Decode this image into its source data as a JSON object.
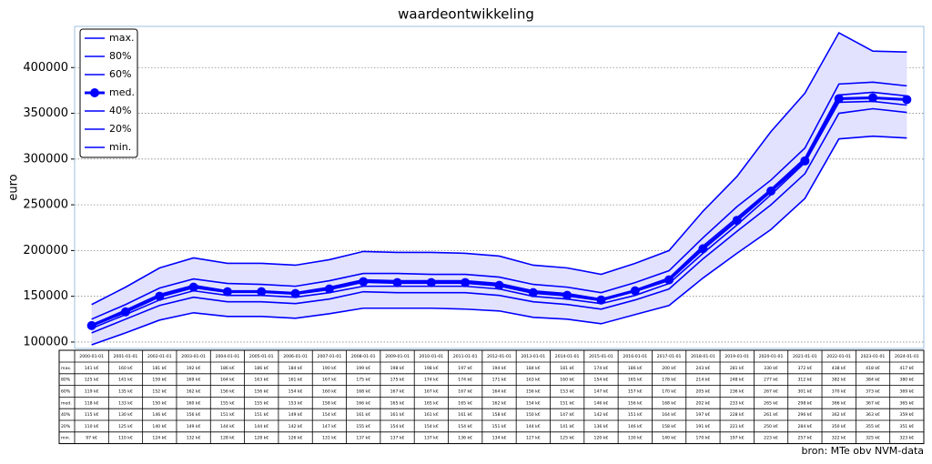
{
  "chart_data": {
    "type": "line",
    "title": "waardeontwikkeling",
    "y_label": "euro",
    "source": "bron: MTe obv NVM-data",
    "x": [
      "2000-01-01",
      "2001-01-01",
      "2002-01-01",
      "2003-01-01",
      "2004-01-01",
      "2005-01-01",
      "2006-01-01",
      "2007-01-01",
      "2008-01-01",
      "2009-01-01",
      "2010-01-01",
      "2011-01-01",
      "2012-01-01",
      "2013-01-01",
      "2014-01-01",
      "2015-01-01",
      "2016-01-01",
      "2017-01-01",
      "2018-01-01",
      "2019-01-01",
      "2020-01-01",
      "2021-01-01",
      "2022-01-01",
      "2023-01-01",
      "2024-01-01"
    ],
    "ylim": [
      93000,
      445000
    ],
    "yticks": [
      100000,
      150000,
      200000,
      250000,
      300000,
      350000,
      400000
    ],
    "grid": true,
    "legend": "upper left",
    "fill_color": "#e2e2ff",
    "series": [
      {
        "name": "max.",
        "color": "#0000ff",
        "values": [
          141000,
          160000,
          181000,
          192000,
          186000,
          186000,
          184000,
          190000,
          199000,
          198000,
          198000,
          197000,
          194000,
          184000,
          181000,
          174000,
          186000,
          200000,
          243000,
          281000,
          330000,
          372000,
          438000,
          418000,
          417000
        ],
        "value_labels": [
          "141 k€",
          "160 k€",
          "181 k€",
          "192 k€",
          "186 k€",
          "186 k€",
          "184 k€",
          "190 k€",
          "199 k€",
          "198 k€",
          "198 k€",
          "197 k€",
          "194 k€",
          "184 k€",
          "181 k€",
          "174 k€",
          "186 k€",
          "200 k€",
          "243 k€",
          "281 k€",
          "330 k€",
          "372 k€",
          "438 k€",
          "418 k€",
          "417 k€"
        ]
      },
      {
        "name": "80%",
        "color": "#0000ff",
        "values": [
          125000,
          141000,
          159000,
          169000,
          164000,
          163000,
          161000,
          167000,
          175000,
          175000,
          174000,
          174000,
          171000,
          163000,
          160000,
          154000,
          165000,
          178000,
          214000,
          248000,
          277000,
          312000,
          382000,
          384000,
          380000
        ],
        "value_labels": [
          "125 k€",
          "141 k€",
          "159 k€",
          "169 k€",
          "164 k€",
          "163 k€",
          "161 k€",
          "167 k€",
          "175 k€",
          "175 k€",
          "174 k€",
          "174 k€",
          "171 k€",
          "163 k€",
          "160 k€",
          "154 k€",
          "165 k€",
          "178 k€",
          "214 k€",
          "248 k€",
          "277 k€",
          "312 k€",
          "382 k€",
          "384 k€",
          "380 k€"
        ]
      },
      {
        "name": "60%",
        "color": "#0000ff",
        "values": [
          119000,
          135000,
          152000,
          162000,
          156000,
          156000,
          154000,
          160000,
          168000,
          167000,
          167000,
          167000,
          164000,
          156000,
          153000,
          147000,
          157000,
          170000,
          205000,
          236000,
          267000,
          301000,
          370000,
          373000,
          369000
        ],
        "value_labels": [
          "119 k€",
          "135 k€",
          "152 k€",
          "162 k€",
          "156 k€",
          "156 k€",
          "154 k€",
          "160 k€",
          "168 k€",
          "167 k€",
          "167 k€",
          "167 k€",
          "164 k€",
          "156 k€",
          "153 k€",
          "147 k€",
          "157 k€",
          "170 k€",
          "205 k€",
          "236 k€",
          "267 k€",
          "301 k€",
          "370 k€",
          "373 k€",
          "369 k€"
        ]
      },
      {
        "name": "med.",
        "color": "#0000ff",
        "marker": "o",
        "values": [
          118000,
          133000,
          150000,
          160000,
          155000,
          155000,
          153000,
          158000,
          166000,
          165000,
          165000,
          165000,
          162000,
          154000,
          151000,
          146000,
          156000,
          168000,
          202000,
          233000,
          265000,
          298000,
          366000,
          367000,
          365000
        ],
        "value_labels": [
          "118 k€",
          "133 k€",
          "150 k€",
          "160 k€",
          "155 k€",
          "155 k€",
          "153 k€",
          "158 k€",
          "166 k€",
          "165 k€",
          "165 k€",
          "165 k€",
          "162 k€",
          "154 k€",
          "151 k€",
          "146 k€",
          "156 k€",
          "168 k€",
          "202 k€",
          "233 k€",
          "265 k€",
          "298 k€",
          "366 k€",
          "367 k€",
          "365 k€"
        ]
      },
      {
        "name": "40%",
        "color": "#0000ff",
        "values": [
          115000,
          130000,
          146000,
          156000,
          151000,
          151000,
          149000,
          154000,
          161000,
          161000,
          161000,
          161000,
          158000,
          150000,
          147000,
          142000,
          151000,
          164000,
          197000,
          228000,
          261000,
          296000,
          362000,
          363000,
          359000
        ],
        "value_labels": [
          "115 k€",
          "130 k€",
          "146 k€",
          "156 k€",
          "151 k€",
          "151 k€",
          "149 k€",
          "154 k€",
          "161 k€",
          "161 k€",
          "161 k€",
          "161 k€",
          "158 k€",
          "150 k€",
          "147 k€",
          "142 k€",
          "151 k€",
          "164 k€",
          "197 k€",
          "228 k€",
          "261 k€",
          "296 k€",
          "362 k€",
          "363 k€",
          "359 k€"
        ]
      },
      {
        "name": "20%",
        "color": "#0000ff",
        "values": [
          110000,
          125000,
          140000,
          149000,
          144000,
          144000,
          142000,
          147000,
          155000,
          154000,
          154000,
          154000,
          151000,
          144000,
          141000,
          136000,
          146000,
          158000,
          191000,
          221000,
          250000,
          284000,
          350000,
          355000,
          351000
        ],
        "value_labels": [
          "110 k€",
          "125 k€",
          "140 k€",
          "149 k€",
          "144 k€",
          "144 k€",
          "142 k€",
          "147 k€",
          "155 k€",
          "154 k€",
          "154 k€",
          "154 k€",
          "151 k€",
          "144 k€",
          "141 k€",
          "136 k€",
          "146 k€",
          "158 k€",
          "191 k€",
          "221 k€",
          "250 k€",
          "284 k€",
          "350 k€",
          "355 k€",
          "351 k€"
        ]
      },
      {
        "name": "min.",
        "color": "#0000ff",
        "values": [
          97000,
          110000,
          124000,
          132000,
          128000,
          128000,
          126000,
          131000,
          137000,
          137000,
          137000,
          136000,
          134000,
          127000,
          125000,
          120000,
          130000,
          140000,
          170000,
          197000,
          223000,
          257000,
          322000,
          325000,
          323000
        ],
        "value_labels": [
          "97 k€",
          "110 k€",
          "124 k€",
          "132 k€",
          "128 k€",
          "128 k€",
          "126 k€",
          "131 k€",
          "137 k€",
          "137 k€",
          "137 k€",
          "136 k€",
          "134 k€",
          "127 k€",
          "125 k€",
          "120 k€",
          "130 k€",
          "140 k€",
          "170 k€",
          "197 k€",
          "223 k€",
          "257 k€",
          "322 k€",
          "325 k€",
          "323 k€"
        ]
      }
    ]
  }
}
